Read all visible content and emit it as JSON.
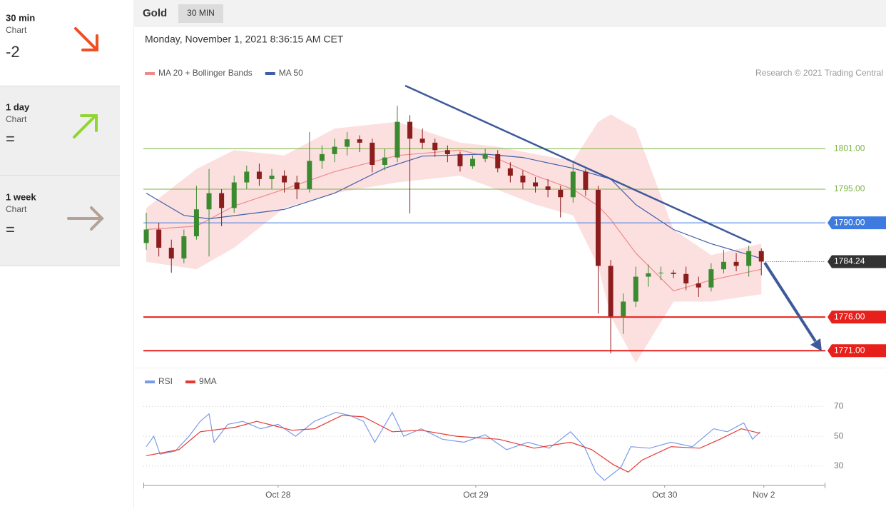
{
  "sidebar": [
    {
      "period": "30 min",
      "label": "Chart",
      "signal": "-2"
    },
    {
      "period": "1 day",
      "label": "Chart",
      "signal": "="
    },
    {
      "period": "1 week",
      "label": "Chart",
      "signal": "="
    }
  ],
  "header": {
    "instrument": "Gold",
    "interval": "30 MIN"
  },
  "chart_data": [
    {
      "type": "candlestick",
      "timestamp": "Monday, November 1, 2021 8:36:15 AM CET",
      "copyright": "Research © 2021 Trading Central",
      "up_color": "#3b8a2f",
      "down_color": "#8c1d1d",
      "xlim": [
        -0.23,
        54.1
      ],
      "ylim": [
        1768.7,
        1810.9
      ],
      "candles": [
        [
          1787.0,
          1791.5,
          1786.0,
          1789.0
        ],
        [
          1789.0,
          1790.0,
          1785.0,
          1786.3
        ],
        [
          1786.3,
          1787.5,
          1782.6,
          1784.7
        ],
        [
          1784.7,
          1789.0,
          1784.0,
          1788.0
        ],
        [
          1788.0,
          1795.5,
          1787.5,
          1792.0
        ],
        [
          1792.0,
          1798.0,
          1785.0,
          1794.4
        ],
        [
          1794.4,
          1795.0,
          1789.5,
          1792.2
        ],
        [
          1792.2,
          1797.0,
          1791.5,
          1796.0
        ],
        [
          1796.0,
          1798.5,
          1795.0,
          1797.6
        ],
        [
          1797.6,
          1798.8,
          1795.5,
          1796.5
        ],
        [
          1796.5,
          1798.0,
          1795.0,
          1797.0
        ],
        [
          1797.0,
          1797.8,
          1794.5,
          1796.0
        ],
        [
          1796.0,
          1797.0,
          1793.5,
          1795.0
        ],
        [
          1795.0,
          1803.5,
          1794.5,
          1799.2
        ],
        [
          1799.2,
          1801.5,
          1798.0,
          1800.2
        ],
        [
          1800.2,
          1802.5,
          1799.0,
          1801.3
        ],
        [
          1801.3,
          1803.5,
          1800.0,
          1802.4
        ],
        [
          1802.4,
          1803.0,
          1800.5,
          1801.9
        ],
        [
          1801.9,
          1802.5,
          1797.5,
          1798.6
        ],
        [
          1798.6,
          1801.0,
          1797.8,
          1799.7
        ],
        [
          1799.7,
          1807.4,
          1799.0,
          1805.0
        ],
        [
          1805.0,
          1806.0,
          1791.4,
          1802.5
        ],
        [
          1802.5,
          1804.0,
          1801.0,
          1801.9
        ],
        [
          1801.9,
          1802.5,
          1799.8,
          1800.8
        ],
        [
          1800.8,
          1801.5,
          1799.0,
          1800.2
        ],
        [
          1800.2,
          1800.6,
          1797.6,
          1798.4
        ],
        [
          1798.4,
          1800.0,
          1798.0,
          1799.5
        ],
        [
          1799.5,
          1801.0,
          1799.0,
          1800.2
        ],
        [
          1800.2,
          1800.8,
          1797.5,
          1798.1
        ],
        [
          1798.1,
          1799.0,
          1796.0,
          1797.0
        ],
        [
          1797.0,
          1797.8,
          1795.0,
          1796.0
        ],
        [
          1796.0,
          1796.8,
          1794.5,
          1795.4
        ],
        [
          1795.4,
          1796.5,
          1793.8,
          1794.9
        ],
        [
          1794.9,
          1795.5,
          1790.8,
          1793.8
        ],
        [
          1793.8,
          1798.8,
          1793.0,
          1797.6
        ],
        [
          1797.6,
          1798.0,
          1794.0,
          1794.9
        ],
        [
          1794.9,
          1795.5,
          1776.5,
          1783.6
        ],
        [
          1783.6,
          1784.5,
          1770.6,
          1776.1
        ],
        [
          1776.1,
          1779.5,
          1773.5,
          1778.3
        ],
        [
          1778.3,
          1783.5,
          1777.5,
          1782.0
        ],
        [
          1782.0,
          1783.8,
          1780.5,
          1782.5
        ],
        [
          1782.5,
          1783.5,
          1781.5,
          1782.6
        ],
        [
          1782.6,
          1783.0,
          1781.8,
          1782.4
        ],
        [
          1782.4,
          1783.5,
          1780.0,
          1781.0
        ],
        [
          1781.0,
          1782.0,
          1779.0,
          1780.4
        ],
        [
          1780.4,
          1784.0,
          1779.8,
          1783.1
        ],
        [
          1783.1,
          1786.0,
          1782.5,
          1784.2
        ],
        [
          1784.2,
          1785.5,
          1782.8,
          1783.6
        ],
        [
          1783.6,
          1786.6,
          1782.0,
          1785.8
        ],
        [
          1785.8,
          1786.2,
          1782.2,
          1784.24
        ]
      ],
      "series": [
        {
          "name": "MA 20 + Bollinger Bands",
          "color": "#f08a8a",
          "band_color": "#fbd6d6",
          "x": [
            0,
            4,
            7,
            11,
            15,
            20,
            25,
            28,
            31,
            34,
            36,
            37,
            39,
            42,
            45,
            49
          ],
          "values": [
            1789,
            1789.5,
            1792.5,
            1795,
            1797.6,
            1800,
            1800.8,
            1799.5,
            1797,
            1795,
            1792.5,
            1790.5,
            1785.5,
            1779.9,
            1781.5,
            1783.1
          ],
          "upper": [
            1792.2,
            1798,
            1800.8,
            1800,
            1804,
            1805,
            1801.9,
            1801.3,
            1800.2,
            1799.2,
            1805,
            1806.1,
            1804,
            1789,
            1785.2,
            1786.9
          ],
          "lower": [
            1784.2,
            1783.1,
            1786.3,
            1792.2,
            1794.4,
            1796,
            1797,
            1794.9,
            1792.7,
            1791.1,
            1783.6,
            1776.1,
            1769.2,
            1778.3,
            1778.3,
            1779.4
          ]
        },
        {
          "name": "MA 50",
          "color": "#3f5ea8",
          "x": [
            0,
            3,
            5,
            11,
            15,
            19,
            22,
            27,
            30,
            34,
            37,
            39,
            42,
            45,
            49
          ],
          "values": [
            1794.4,
            1791.1,
            1790.6,
            1792,
            1794.4,
            1798.1,
            1799.9,
            1800.2,
            1799.7,
            1798.1,
            1796.5,
            1792.7,
            1789,
            1786.9,
            1784.7
          ]
        }
      ],
      "levels": [
        {
          "value": 1801,
          "label": "1801.00",
          "color": "#7cb342",
          "boxed": false,
          "line_style": "solid"
        },
        {
          "value": 1795,
          "label": "1795.00",
          "color": "#7cb342",
          "boxed": false,
          "line_style": "solid"
        },
        {
          "value": 1790,
          "label": "1790.00",
          "color": "#3d7be0",
          "boxed": true,
          "line_style": "solid"
        },
        {
          "value": 1784.24,
          "label": "1784.24",
          "color": "#333333",
          "boxed": true,
          "line_style": "dotted"
        },
        {
          "value": 1776,
          "label": "1776.00",
          "color": "#e8201c",
          "boxed": true,
          "line_style": "bold"
        },
        {
          "value": 1771,
          "label": "1771.00",
          "color": "#e8201c",
          "boxed": true,
          "line_style": "bold"
        }
      ]
    },
    {
      "type": "line",
      "xlim": [
        -0.23,
        54.1
      ],
      "ylim": [
        18,
        84
      ],
      "yticks": [
        30,
        50,
        70
      ],
      "grid": true,
      "xticks": [
        {
          "value": 10.5,
          "label": "Oct 28"
        },
        {
          "value": 26.25,
          "label": "Oct 29"
        },
        {
          "value": 41.3,
          "label": "Oct 30"
        },
        {
          "value": 49.2,
          "label": "Nov 2"
        }
      ],
      "series": [
        {
          "name": "RSI",
          "color": "#7b9be8",
          "x": [
            0,
            0.6,
            1.1,
            2.3,
            3.4,
            4.3,
            5,
            5.4,
            6.5,
            7.7,
            9.1,
            10.5,
            11.9,
            13.4,
            15.1,
            16.2,
            17.3,
            18.2,
            19.6,
            20.5,
            21.9,
            23.6,
            25.3,
            27,
            28.7,
            30.4,
            32.1,
            33.8,
            34.9,
            35.8,
            36.5,
            37.8,
            38.6,
            40.1,
            41.8,
            43.5,
            45.2,
            46.3,
            47.6,
            48.3,
            48.9
          ],
          "values": [
            43,
            50,
            38,
            40,
            50,
            60,
            65,
            46,
            58,
            60,
            55,
            58,
            50,
            60,
            66,
            64,
            60,
            46,
            66,
            50,
            55,
            48,
            46,
            51,
            41,
            46,
            42,
            53,
            43,
            26,
            20.5,
            29,
            43,
            42,
            46,
            43,
            55,
            53,
            59,
            48,
            53
          ]
        },
        {
          "name": "9MA",
          "color": "#e53935",
          "x": [
            0,
            2.6,
            4.3,
            7.1,
            8.8,
            11.6,
            13.4,
            15.6,
            17.3,
            19.6,
            21.9,
            24.7,
            28.1,
            30.9,
            33.8,
            35.5,
            37.2,
            38.4,
            39.5,
            41.8,
            44.1,
            45.7,
            47.4,
            48.9
          ],
          "values": [
            37,
            41,
            53,
            56,
            60,
            54,
            55,
            64,
            63,
            53,
            54,
            50,
            48,
            42,
            46,
            41,
            31,
            26,
            34,
            43,
            42,
            48,
            55,
            52
          ]
        }
      ]
    }
  ]
}
